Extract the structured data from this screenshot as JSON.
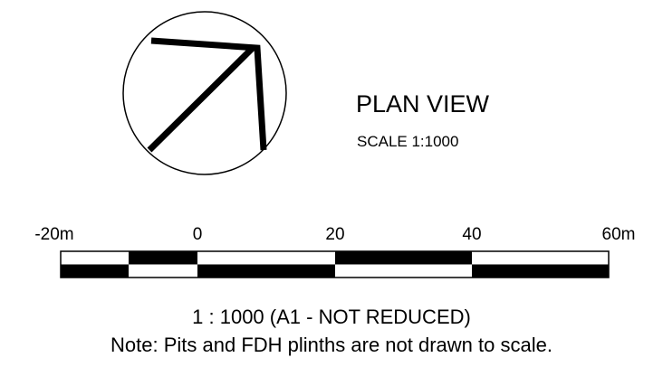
{
  "title": "PLAN VIEW",
  "subtitle": "SCALE 1:1000",
  "scale_bar": {
    "labels": [
      "-20m",
      "0",
      "20",
      "40",
      "60m"
    ]
  },
  "notes": [
    "1 : 1000 (A1 - NOT REDUCED)",
    "Note: Pits and FDH plinths are not drawn to scale."
  ]
}
